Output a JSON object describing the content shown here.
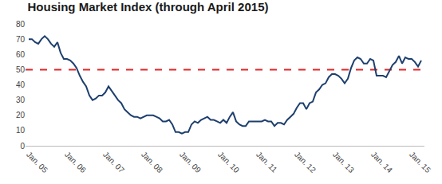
{
  "chart_data": {
    "type": "line",
    "title": "Housing Market Index (through April 2015)",
    "categories": [
      "Jan. 05",
      null,
      null,
      null,
      null,
      null,
      null,
      null,
      null,
      null,
      null,
      null,
      "Jan. 06",
      null,
      null,
      null,
      null,
      null,
      null,
      null,
      null,
      null,
      null,
      null,
      "Jan. 07",
      null,
      null,
      null,
      null,
      null,
      null,
      null,
      null,
      null,
      null,
      null,
      "Jan. 08",
      null,
      null,
      null,
      null,
      null,
      null,
      null,
      null,
      null,
      null,
      null,
      "Jan. 09",
      null,
      null,
      null,
      null,
      null,
      null,
      null,
      null,
      null,
      null,
      null,
      "Jan. 10",
      null,
      null,
      null,
      null,
      null,
      null,
      null,
      null,
      null,
      null,
      null,
      "Jan. 11",
      null,
      null,
      null,
      null,
      null,
      null,
      null,
      null,
      null,
      null,
      null,
      "Jan. 12",
      null,
      null,
      null,
      null,
      null,
      null,
      null,
      null,
      null,
      null,
      null,
      "Jan. 13",
      null,
      null,
      null,
      null,
      null,
      null,
      null,
      null,
      null,
      null,
      null,
      "Jan. 14",
      null,
      null,
      null,
      null,
      null,
      null,
      null,
      null,
      null,
      null,
      null,
      "Jan. 15",
      null,
      null,
      null
    ],
    "values": [
      70,
      70,
      68,
      67,
      70,
      72,
      70,
      67,
      65,
      68,
      61,
      57,
      57,
      56,
      54,
      51,
      46,
      42,
      39,
      33,
      30,
      31,
      33,
      33,
      35,
      39,
      36,
      33,
      30,
      28,
      24,
      22,
      20,
      19,
      19,
      18,
      19,
      20,
      20,
      20,
      19,
      18,
      16,
      16,
      17,
      14,
      9,
      9,
      8,
      9,
      9,
      14,
      16,
      15,
      17,
      18,
      19,
      17,
      17,
      16,
      15,
      17,
      15,
      19,
      22,
      16,
      14,
      13,
      13,
      16,
      16,
      16,
      16,
      16,
      17,
      16,
      16,
      13,
      15,
      15,
      14,
      17,
      19,
      21,
      25,
      28,
      28,
      24,
      28,
      29,
      35,
      37,
      40,
      41,
      45,
      47,
      47,
      46,
      44,
      41,
      44,
      51,
      56,
      58,
      57,
      54,
      54,
      57,
      56,
      46,
      46,
      46,
      45,
      49,
      53,
      55,
      59,
      54,
      58,
      57,
      57,
      55,
      52,
      56
    ],
    "color": "#1d3f6e",
    "ylim": [
      0,
      80
    ],
    "yticks": [
      0,
      10,
      20,
      30,
      40,
      50,
      60,
      70,
      80
    ],
    "grid": false,
    "reference_line": {
      "value": 50,
      "color": "#e0262b",
      "line_style": "dashed"
    }
  }
}
